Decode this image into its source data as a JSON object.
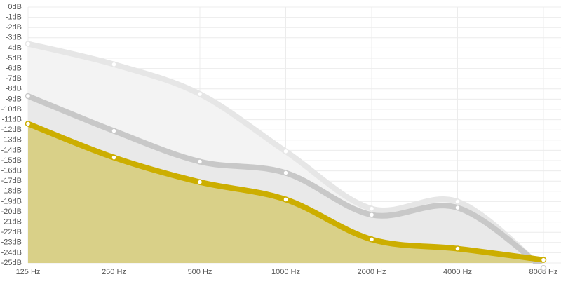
{
  "chart_data": {
    "type": "area",
    "categories": [
      "125 Hz",
      "250 Hz",
      "500 Hz",
      "1000 Hz",
      "2000 Hz",
      "4000 Hz",
      "8000 Hz"
    ],
    "series": [
      {
        "color": "#e6e6e6",
        "fill": "#f3f3f3",
        "values": [
          -3.6,
          -5.6,
          -8.5,
          -14.1,
          -19.7,
          -19.0,
          -25.6
        ]
      },
      {
        "color": "#c8c8c8",
        "fill": "#e9e9e9",
        "values": [
          -8.7,
          -12.1,
          -15.1,
          -16.2,
          -20.3,
          -19.6,
          -25.5
        ]
      },
      {
        "color": "#ccae00",
        "fill": "#d9d088",
        "values": [
          -11.4,
          -14.7,
          -17.1,
          -18.8,
          -22.7,
          -23.6,
          -24.7
        ]
      }
    ],
    "ylim": [
      -25,
      0
    ],
    "yticks": [
      {
        "value": 0,
        "label": "0dB"
      },
      {
        "value": -1,
        "label": "-1dB"
      },
      {
        "value": -2,
        "label": "-2dB"
      },
      {
        "value": -3,
        "label": "-3dB"
      },
      {
        "value": -4,
        "label": "-4dB"
      },
      {
        "value": -5,
        "label": "-5dB"
      },
      {
        "value": -6,
        "label": "-6dB"
      },
      {
        "value": -7,
        "label": "-7dB"
      },
      {
        "value": -8,
        "label": "-8dB"
      },
      {
        "value": -9,
        "label": "-9dB"
      },
      {
        "value": -10,
        "label": "-10dB"
      },
      {
        "value": -11,
        "label": "-11dB"
      },
      {
        "value": -12,
        "label": "-12dB"
      },
      {
        "value": -13,
        "label": "-13dB"
      },
      {
        "value": -14,
        "label": "-14dB"
      },
      {
        "value": -15,
        "label": "-15dB"
      },
      {
        "value": -16,
        "label": "-16dB"
      },
      {
        "value": -17,
        "label": "-17dB"
      },
      {
        "value": -18,
        "label": "-18dB"
      },
      {
        "value": -19,
        "label": "-19dB"
      },
      {
        "value": -20,
        "label": "-20dB"
      },
      {
        "value": -21,
        "label": "-21dB"
      },
      {
        "value": -22,
        "label": "-22dB"
      },
      {
        "value": -23,
        "label": "-23dB"
      },
      {
        "value": -24,
        "label": "-24dB"
      },
      {
        "value": -25,
        "label": "-25dB"
      }
    ],
    "grid": true
  }
}
